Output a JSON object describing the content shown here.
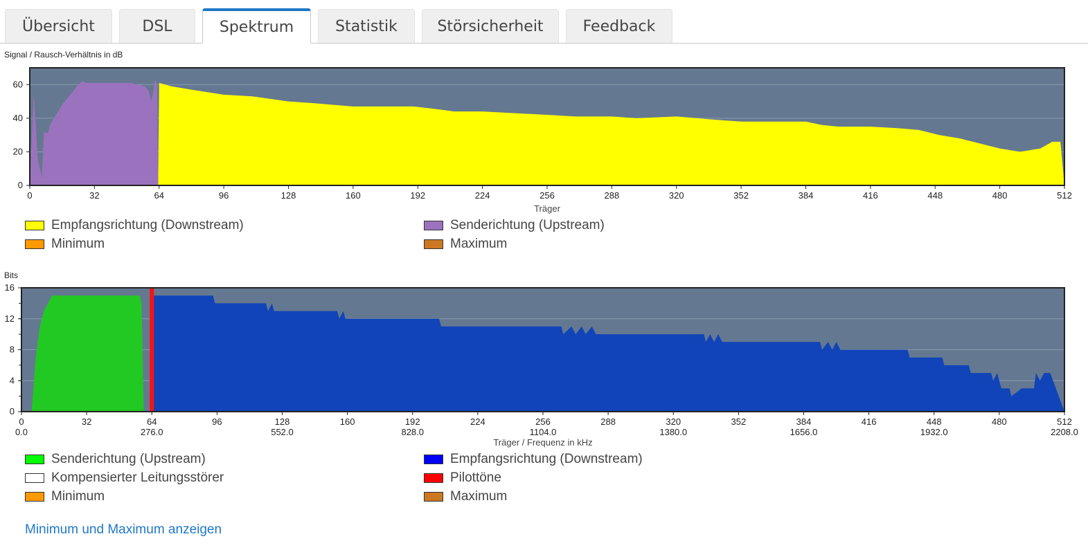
{
  "tabs": [
    {
      "label": "Übersicht"
    },
    {
      "label": "DSL"
    },
    {
      "label": "Spektrum"
    },
    {
      "label": "Statistik"
    },
    {
      "label": "Störsicherheit"
    },
    {
      "label": "Feedback"
    }
  ],
  "active_tab": "Spektrum",
  "snr": {
    "ylabel": "Signal / Rausch-Verhältnis in dB",
    "xlabel": "Träger",
    "legend": [
      {
        "label": "Empfangsrichtung (Downstream)",
        "color": "#ffff00"
      },
      {
        "label": "Senderichtung (Upstream)",
        "color": "#9b72bd"
      },
      {
        "label": "Minimum",
        "color": "#ff9900"
      },
      {
        "label": "Maximum",
        "color": "#cc7722"
      }
    ]
  },
  "bits": {
    "ylabel": "Bits",
    "xlabel": "Träger / Frequenz in kHz",
    "legend": [
      {
        "label": "Senderichtung (Upstream)",
        "color": "#00ff00"
      },
      {
        "label": "Empfangsrichtung (Downstream)",
        "color": "#0000ff"
      },
      {
        "label": "Kompensierter Leitungsstörer",
        "color": "#ffffff"
      },
      {
        "label": "Pilottöne",
        "color": "#ff0000"
      },
      {
        "label": "Minimum",
        "color": "#ff9900"
      },
      {
        "label": "Maximum",
        "color": "#cc7722"
      }
    ]
  },
  "link_label": "Minimum und Maximum anzeigen",
  "chart_data": [
    {
      "type": "area",
      "ylabel": "Signal / Rausch-Verhältnis in dB",
      "xlabel": "Träger",
      "xlim": [
        0,
        512
      ],
      "ylim": [
        0,
        70
      ],
      "x_ticks": [
        "0",
        "32",
        "64",
        "96",
        "128",
        "160",
        "192",
        "224",
        "256",
        "288",
        "320",
        "352",
        "384",
        "416",
        "448",
        "480",
        "512"
      ],
      "y_ticks": [
        "0",
        "20",
        "40",
        "60"
      ],
      "background": "#647891",
      "series": [
        {
          "name": "Senderichtung (Upstream)",
          "color": "#9b72bd",
          "points": [
            [
              0,
              0
            ],
            [
              2,
              55
            ],
            [
              4,
              15
            ],
            [
              6,
              5
            ],
            [
              7,
              32
            ],
            [
              9,
              31
            ],
            [
              10,
              36
            ],
            [
              13,
              42
            ],
            [
              16,
              48
            ],
            [
              20,
              54
            ],
            [
              24,
              60
            ],
            [
              26,
              62
            ],
            [
              28,
              61
            ],
            [
              40,
              61
            ],
            [
              50,
              61
            ],
            [
              57,
              59
            ],
            [
              59,
              56
            ],
            [
              60,
              50
            ],
            [
              61,
              55
            ],
            [
              62,
              63
            ],
            [
              63,
              60
            ],
            [
              63.5,
              0
            ]
          ]
        },
        {
          "name": "Empfangsrichtung (Downstream)",
          "color": "#ffff00",
          "points": [
            [
              63.5,
              0
            ],
            [
              64,
              61
            ],
            [
              70,
              59
            ],
            [
              80,
              57
            ],
            [
              96,
              54
            ],
            [
              110,
              53
            ],
            [
              128,
              50
            ],
            [
              140,
              49
            ],
            [
              160,
              47
            ],
            [
              190,
              47
            ],
            [
              204,
              45
            ],
            [
              210,
              44
            ],
            [
              224,
              44
            ],
            [
              240,
              43
            ],
            [
              256,
              42
            ],
            [
              270,
              41
            ],
            [
              288,
              41
            ],
            [
              300,
              40
            ],
            [
              320,
              41
            ],
            [
              340,
              39
            ],
            [
              352,
              38
            ],
            [
              370,
              38
            ],
            [
              384,
              38
            ],
            [
              392,
              36
            ],
            [
              400,
              35
            ],
            [
              416,
              35
            ],
            [
              430,
              34
            ],
            [
              440,
              33
            ],
            [
              450,
              30
            ],
            [
              460,
              28
            ],
            [
              470,
              25
            ],
            [
              480,
              22
            ],
            [
              490,
              20
            ],
            [
              500,
              22
            ],
            [
              506,
              26
            ],
            [
              510,
              26
            ],
            [
              512,
              0
            ]
          ]
        }
      ]
    },
    {
      "type": "area",
      "ylabel": "Bits",
      "xlabel": "Träger / Frequenz in kHz",
      "xlim": [
        0,
        512
      ],
      "ylim": [
        0,
        16
      ],
      "x_ticks": [
        "0",
        "32",
        "64",
        "96",
        "128",
        "160",
        "192",
        "224",
        "256",
        "288",
        "320",
        "352",
        "384",
        "416",
        "448",
        "480",
        "512"
      ],
      "x_ticks_khz": [
        "0.0",
        "276.0",
        "552.0",
        "828.0",
        "1104.0",
        "1380.0",
        "1656.0",
        "1932.0",
        "2208.0"
      ],
      "y_ticks": [
        "0",
        "4",
        "8",
        "12",
        "16"
      ],
      "background": "#647891",
      "series": [
        {
          "name": "Senderichtung (Upstream)",
          "color": "#22c922",
          "points": [
            [
              5,
              0
            ],
            [
              7,
              7
            ],
            [
              9,
              11
            ],
            [
              11,
              13
            ],
            [
              13,
              14
            ],
            [
              15,
              15
            ],
            [
              58,
              15
            ],
            [
              59,
              14
            ],
            [
              60,
              0
            ]
          ]
        },
        {
          "name": "Empfangsrichtung (Downstream)",
          "color": "#1144b8",
          "points": [
            [
              64,
              0
            ],
            [
              64,
              15
            ],
            [
              94,
              15
            ],
            [
              95,
              14
            ],
            [
              120,
              14
            ],
            [
              121,
              13
            ],
            [
              123,
              14
            ],
            [
              124,
              13
            ],
            [
              155,
              13
            ],
            [
              156,
              12
            ],
            [
              158,
              13
            ],
            [
              159,
              12
            ],
            [
              205,
              12
            ],
            [
              206,
              11
            ],
            [
              265,
              11
            ],
            [
              266,
              10
            ],
            [
              270,
              11
            ],
            [
              272,
              10
            ],
            [
              275,
              11
            ],
            [
              277,
              10
            ],
            [
              280,
              11
            ],
            [
              282,
              10
            ],
            [
              335,
              10
            ],
            [
              336,
              9
            ],
            [
              338,
              10
            ],
            [
              340,
              9
            ],
            [
              342,
              10
            ],
            [
              344,
              9
            ],
            [
              392,
              9
            ],
            [
              393,
              8
            ],
            [
              396,
              9
            ],
            [
              398,
              8
            ],
            [
              400,
              9
            ],
            [
              402,
              8
            ],
            [
              435,
              8
            ],
            [
              436,
              7
            ],
            [
              452,
              7
            ],
            [
              453,
              6
            ],
            [
              465,
              6
            ],
            [
              466,
              5
            ],
            [
              476,
              5
            ],
            [
              477,
              4
            ],
            [
              479,
              5
            ],
            [
              481,
              3
            ],
            [
              485,
              3
            ],
            [
              486,
              2
            ],
            [
              491,
              3
            ],
            [
              497,
              3
            ],
            [
              498,
              5
            ],
            [
              500,
              4
            ],
            [
              502,
              5
            ],
            [
              505,
              5
            ],
            [
              512,
              0
            ]
          ]
        },
        {
          "name": "Pilottöne",
          "color": "#ff1111",
          "points": [
            [
              63,
              0
            ],
            [
              63,
              16
            ],
            [
              65,
              16
            ],
            [
              65,
              0
            ]
          ]
        }
      ]
    }
  ]
}
